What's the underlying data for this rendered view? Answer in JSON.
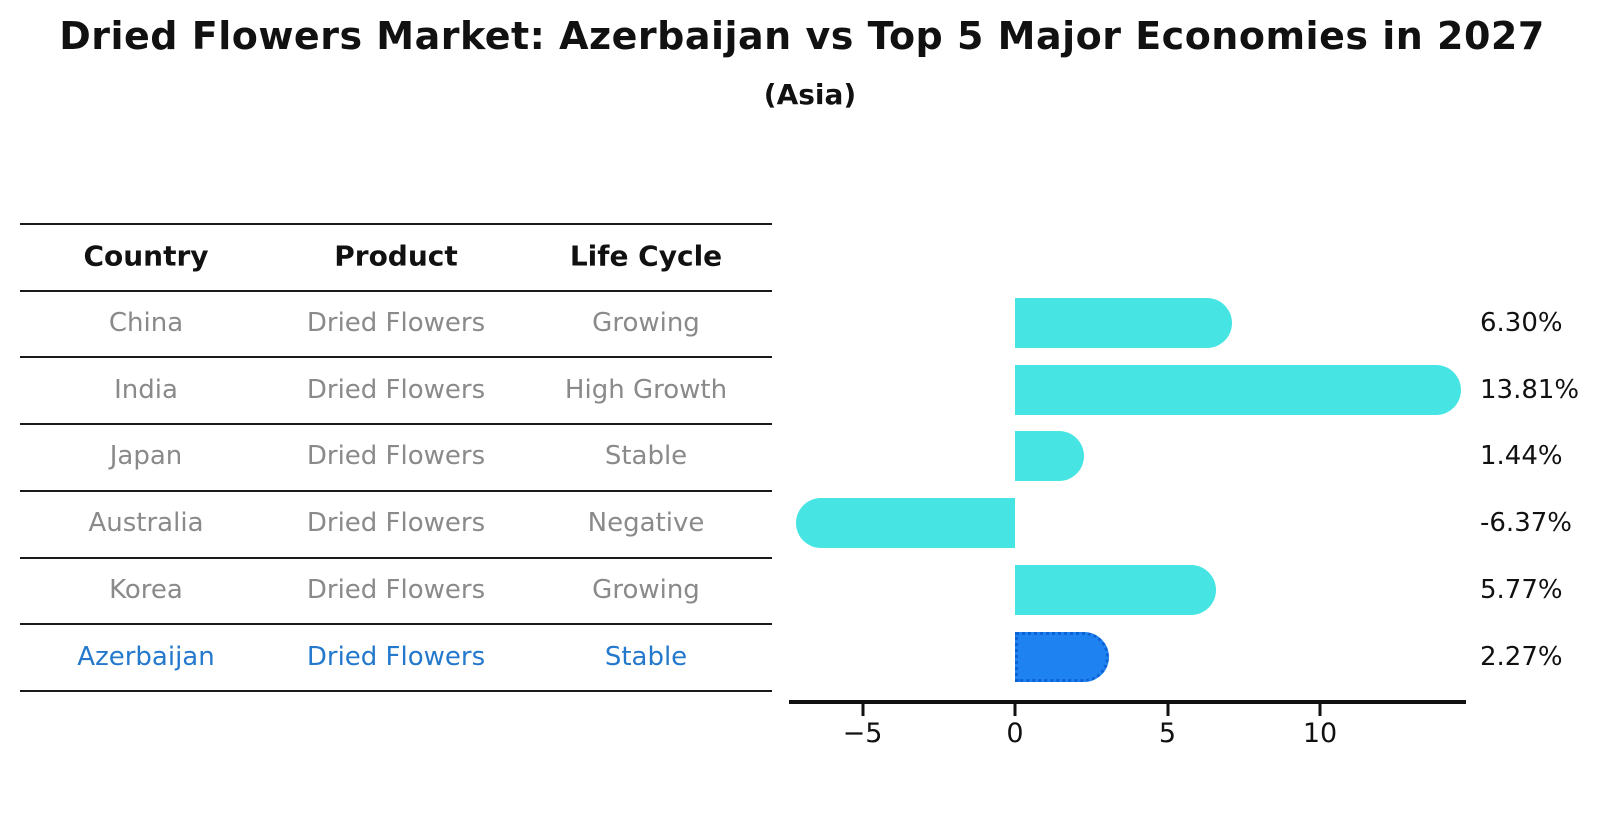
{
  "title": "Dried Flowers Market: Azerbaijan vs Top 5 Major Economies in 2027",
  "subtitle": "(Asia)",
  "table": {
    "headers": [
      "Country",
      "Product",
      "Life Cycle"
    ],
    "rows": [
      {
        "country": "China",
        "product": "Dried Flowers",
        "life_cycle": "Growing",
        "highlight": false
      },
      {
        "country": "India",
        "product": "Dried Flowers",
        "life_cycle": "High Growth",
        "highlight": false
      },
      {
        "country": "Japan",
        "product": "Dried Flowers",
        "life_cycle": "Stable",
        "highlight": false
      },
      {
        "country": "Australia",
        "product": "Dried Flowers",
        "life_cycle": "Negative",
        "highlight": false
      },
      {
        "country": "Korea",
        "product": "Dried Flowers",
        "life_cycle": "Growing",
        "highlight": false
      },
      {
        "country": "Azerbaijan",
        "product": "Dried Flowers",
        "life_cycle": "Stable",
        "highlight": true
      }
    ]
  },
  "chart_data": {
    "type": "bar",
    "orientation": "horizontal",
    "title": "Dried Flowers Market: Azerbaijan vs Top 5 Major Economies in 2027",
    "subtitle": "(Asia)",
    "categories": [
      "China",
      "India",
      "Japan",
      "Australia",
      "Korea",
      "Azerbaijan"
    ],
    "values": [
      6.3,
      13.81,
      1.44,
      -6.37,
      5.77,
      2.27
    ],
    "value_labels": [
      "6.30%",
      "13.81%",
      "1.44%",
      "-6.37%",
      "5.77%",
      "2.27%"
    ],
    "x_ticks": [
      -5,
      0,
      5,
      10
    ],
    "x_tick_labels": [
      "−5",
      "0",
      "5",
      "10"
    ],
    "xlim": [
      -7.5,
      14.8
    ],
    "ylabel": "",
    "xlabel": "",
    "grid": false,
    "legend": false,
    "highlight_index": 5
  },
  "colors": {
    "bar": "#46E4E2",
    "highlight_bar": "#1E82F0",
    "highlight_text": "#2579CC",
    "muted_text": "#8a8a8a",
    "line": "#1a1a1a"
  }
}
